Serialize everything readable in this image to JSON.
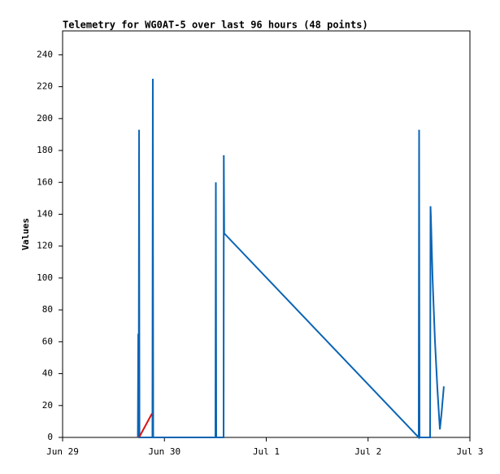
{
  "chart_data": {
    "type": "line",
    "title": "Telemetry for WG0AT-5 over last 96 hours (48 points)",
    "y_label": "Values",
    "xlim": [
      0,
      4
    ],
    "xticks": [
      {
        "value": 0,
        "label": "Jun 29"
      },
      {
        "value": 1,
        "label": "Jun 30"
      },
      {
        "value": 2,
        "label": "Jul 1"
      },
      {
        "value": 3,
        "label": "Jul 2"
      },
      {
        "value": 4,
        "label": "Jul 3"
      }
    ],
    "ylim": [
      0,
      255
    ],
    "yticks": [
      0,
      20,
      40,
      60,
      80,
      100,
      120,
      140,
      160,
      180,
      200,
      220,
      240
    ],
    "series": [
      {
        "color": "#0a64b4",
        "x": [
          0.739,
          0.743,
          0.747,
          0.751,
          0.755,
          0.882,
          0.886,
          0.89,
          1.501,
          1.505,
          1.509,
          1.581,
          1.583,
          1.587,
          3.497,
          3.501,
          3.505,
          3.609,
          3.613,
          3.617,
          3.633,
          3.657,
          3.681,
          3.705,
          3.721,
          3.744
        ],
        "values": [
          0,
          65,
          0,
          193,
          0,
          0,
          225,
          0,
          0,
          160,
          0,
          0,
          177,
          128,
          0,
          193,
          0,
          0,
          145,
          138,
          100,
          60,
          30,
          5,
          15,
          32
        ]
      },
      {
        "color": "#dd1111",
        "x": [
          0.751,
          0.878
        ],
        "values": [
          0,
          15
        ]
      }
    ]
  }
}
